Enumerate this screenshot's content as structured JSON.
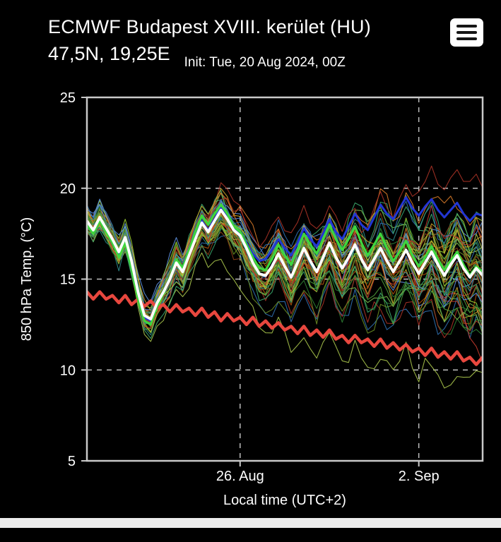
{
  "header": {
    "title_line1": "ECMWF Budapest XVIII. kerület (HU)",
    "title_line2": "47,5N, 19,25E",
    "init_text": "Init: Tue, 20 Aug 2024, 00Z"
  },
  "menu": {
    "icon": "hamburger-menu-icon"
  },
  "colors": {
    "background": "#000000",
    "text": "#ffffff",
    "plot_border": "#c9c9c9",
    "grid": "#bdbdbd",
    "bottom_strip": "#ececec"
  },
  "chart_data": {
    "type": "line",
    "title": "",
    "xlabel": "Local time (UTC+2)",
    "ylabel": "850 hPa Temp. (°C)",
    "ylim": [
      5,
      25
    ],
    "yticks": [
      25,
      20,
      15,
      10,
      5
    ],
    "grid_y": [
      20,
      15,
      10
    ],
    "x_days_range": [
      0,
      15.5
    ],
    "x_step_days": 0.25,
    "xticks": [
      {
        "day": 6,
        "label": "26. Aug"
      },
      {
        "day": 13,
        "label": "2. Sep"
      }
    ],
    "series": [
      {
        "name": "climate-mean",
        "color": "#e8473e",
        "width": 4.5,
        "values": [
          14.3,
          13.9,
          14.3,
          13.9,
          14.1,
          13.7,
          14.1,
          13.6,
          13.9,
          13.5,
          13.8,
          13.4,
          13.6,
          13.2,
          13.6,
          13.2,
          13.4,
          13.0,
          13.4,
          12.9,
          13.2,
          12.7,
          13.1,
          12.7,
          12.9,
          12.5,
          12.9,
          12.4,
          12.7,
          12.3,
          12.6,
          12.2,
          12.4,
          12.0,
          12.4,
          11.9,
          12.2,
          11.8,
          12.2,
          11.7,
          11.9,
          11.5,
          11.9,
          11.5,
          11.7,
          11.3,
          11.7,
          11.2,
          11.5,
          11.1,
          11.4,
          11.0,
          11.2,
          10.8,
          11.2,
          10.7,
          11.0,
          10.6,
          11.0,
          10.5,
          10.7,
          10.3,
          10.7
        ]
      },
      {
        "name": "blue-run",
        "color": "#2236d4",
        "width": 3,
        "values": [
          18.1,
          17.6,
          18.3,
          17.7,
          17.1,
          16.4,
          17.1,
          15.8,
          14.1,
          12.9,
          12.7,
          13.6,
          14.3,
          15.1,
          16.0,
          15.5,
          16.4,
          17.3,
          18.2,
          17.7,
          18.3,
          18.9,
          18.4,
          17.8,
          17.5,
          17.0,
          16.4,
          16.0,
          16.1,
          16.6,
          17.2,
          16.7,
          16.3,
          17.0,
          17.8,
          17.2,
          16.8,
          17.5,
          18.3,
          17.6,
          17.2,
          17.9,
          18.6,
          18.0,
          17.7,
          18.4,
          19.1,
          18.6,
          18.3,
          18.9,
          19.5,
          18.9,
          18.5,
          19.0,
          19.4,
          18.8,
          18.4,
          18.8,
          19.2,
          18.6,
          18.2,
          18.6,
          18.5
        ]
      },
      {
        "name": "control-run",
        "color": "#3ed63e",
        "width": 3.2,
        "values": [
          18.0,
          17.5,
          18.2,
          17.6,
          17.0,
          16.2,
          17.0,
          15.6,
          13.9,
          12.7,
          12.5,
          13.5,
          14.2,
          15.1,
          16.1,
          15.6,
          16.6,
          17.6,
          18.5,
          18.0,
          18.6,
          19.1,
          18.6,
          17.9,
          17.6,
          16.9,
          16.2,
          15.6,
          15.5,
          16.1,
          16.9,
          16.3,
          15.8,
          16.6,
          17.5,
          16.9,
          16.4,
          17.2,
          18.0,
          17.2,
          16.6,
          17.2,
          17.9,
          17.0,
          16.3,
          16.9,
          17.5,
          16.7,
          16.0,
          16.5,
          17.1,
          16.3,
          15.7,
          16.2,
          16.8,
          16.1,
          15.5,
          16.0,
          16.5,
          15.8,
          15.2,
          15.7,
          15.4
        ]
      },
      {
        "name": "ensemble-mean",
        "color": "#ffffff",
        "width": 3.8,
        "values": [
          18.2,
          17.7,
          18.4,
          17.8,
          17.2,
          16.5,
          17.3,
          16.0,
          14.3,
          13.0,
          12.8,
          13.7,
          14.3,
          15.0,
          15.9,
          15.4,
          16.3,
          17.2,
          18.1,
          17.6,
          18.2,
          18.8,
          18.3,
          17.7,
          17.4,
          16.7,
          15.9,
          15.3,
          15.2,
          15.7,
          16.4,
          15.7,
          15.1,
          15.9,
          16.7,
          16.0,
          15.4,
          16.2,
          17.0,
          16.2,
          15.6,
          16.2,
          16.9,
          16.1,
          15.5,
          16.1,
          16.7,
          16.0,
          15.4,
          16.0,
          16.6,
          15.9,
          15.3,
          15.9,
          16.5,
          15.8,
          15.2,
          15.8,
          16.3,
          15.6,
          15.1,
          15.6,
          15.2
        ]
      }
    ],
    "ensemble": {
      "count": 50,
      "seed": 11,
      "line_width": 1.1,
      "opacity": 0.9,
      "palette": [
        "#4d9a3a",
        "#2e7d32",
        "#79b94c",
        "#a6c24a",
        "#c9a227",
        "#d97b29",
        "#b4530a",
        "#8a4117",
        "#a93226",
        "#2e8b8b",
        "#2f6fb0",
        "#5b8dd9",
        "#6b8e23",
        "#3aa66b",
        "#9acd32",
        "#c0392b"
      ]
    }
  }
}
